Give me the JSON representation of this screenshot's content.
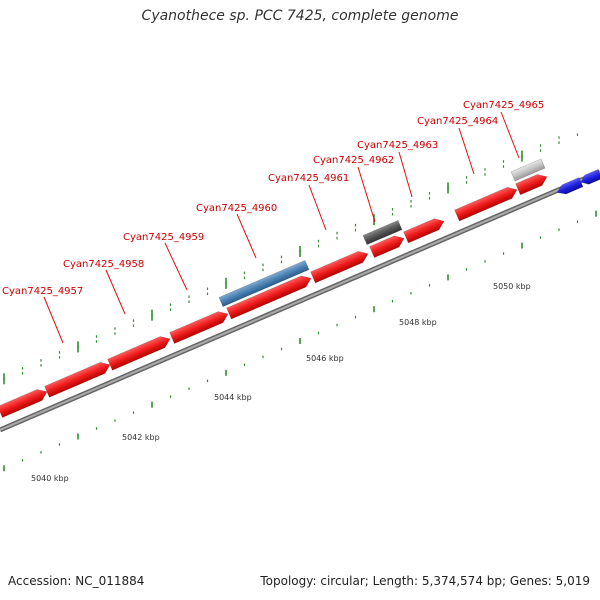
{
  "title": "Cyanothece sp. PCC 7425, complete genome",
  "footer": {
    "accession": "Accession: NC_011884",
    "topology": "Topology: circular; Length: 5,374,574 bp; Genes: 5,019"
  },
  "colors": {
    "gene": "#ee1c1c",
    "gene_label": "#cc0000",
    "highlight": "#4a82b4",
    "dark_feature": "#555555",
    "light_feature": "#c4c4c4",
    "other_strand": "#1f1fdd",
    "tick": "#2f8f2f",
    "backbone": "#888888"
  },
  "scale": {
    "labels": [
      "5040 kbp",
      "5042 kbp",
      "5044 kbp",
      "5046 kbp",
      "5048 kbp",
      "5050 kbp"
    ]
  },
  "genes": [
    {
      "label": "Cyan7425_4957"
    },
    {
      "label": "Cyan7425_4958"
    },
    {
      "label": "Cyan7425_4959"
    },
    {
      "label": "Cyan7425_4960"
    },
    {
      "label": "Cyan7425_4961"
    },
    {
      "label": "Cyan7425_4962"
    },
    {
      "label": "Cyan7425_4963"
    },
    {
      "label": "Cyan7425_4964"
    },
    {
      "label": "Cyan7425_4965"
    }
  ]
}
